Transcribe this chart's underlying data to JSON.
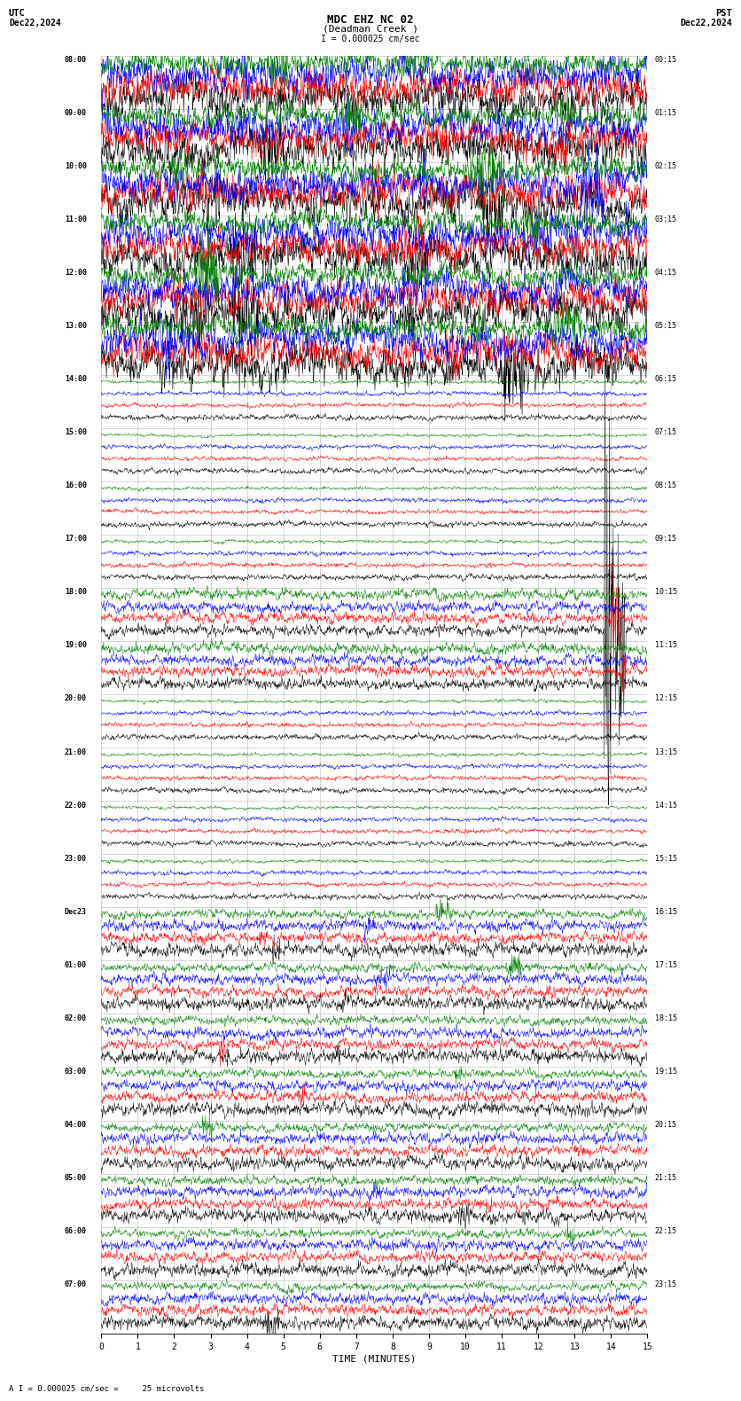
{
  "title_line1": "MDC EHZ NC 02",
  "title_line2": "(Deadman Creek )",
  "scale_label": "I = 0.000025 cm/sec",
  "utc_label": "UTC",
  "pst_label": "PST",
  "date_left": "Dec22,2024",
  "date_right": "Dec22,2024",
  "xlabel": "TIME (MINUTES)",
  "bottom_note": "A I = 0.000025 cm/sec =     25 microvolts",
  "bg_color": "#ffffff",
  "trace_colors": [
    "#000000",
    "#ff0000",
    "#0000ff",
    "#008000"
  ],
  "grid_color": "#aaaaaa",
  "text_color": "#000000",
  "left_times_utc": [
    "08:00",
    "09:00",
    "10:00",
    "11:00",
    "12:00",
    "13:00",
    "14:00",
    "15:00",
    "16:00",
    "17:00",
    "18:00",
    "19:00",
    "20:00",
    "21:00",
    "22:00",
    "23:00",
    "Dec23",
    "01:00",
    "02:00",
    "03:00",
    "04:00",
    "05:00",
    "06:00",
    "07:00"
  ],
  "right_times_pst": [
    "00:15",
    "01:15",
    "02:15",
    "03:15",
    "04:15",
    "05:15",
    "06:15",
    "07:15",
    "08:15",
    "09:15",
    "10:15",
    "11:15",
    "12:15",
    "13:15",
    "14:15",
    "15:15",
    "16:15",
    "17:15",
    "18:15",
    "19:15",
    "20:15",
    "21:15",
    "22:15",
    "23:15"
  ],
  "n_rows": 24,
  "n_traces_per_row": 4,
  "xmin": 0,
  "xmax": 15,
  "xticks": [
    0,
    1,
    2,
    3,
    4,
    5,
    6,
    7,
    8,
    9,
    10,
    11,
    12,
    13,
    14,
    15
  ],
  "active_rows": [
    0,
    1,
    2,
    3,
    4,
    5
  ],
  "spike_row": 10,
  "spike_row2": 11,
  "late_active_rows": [
    16,
    17,
    18,
    19,
    20,
    21,
    22,
    23
  ]
}
